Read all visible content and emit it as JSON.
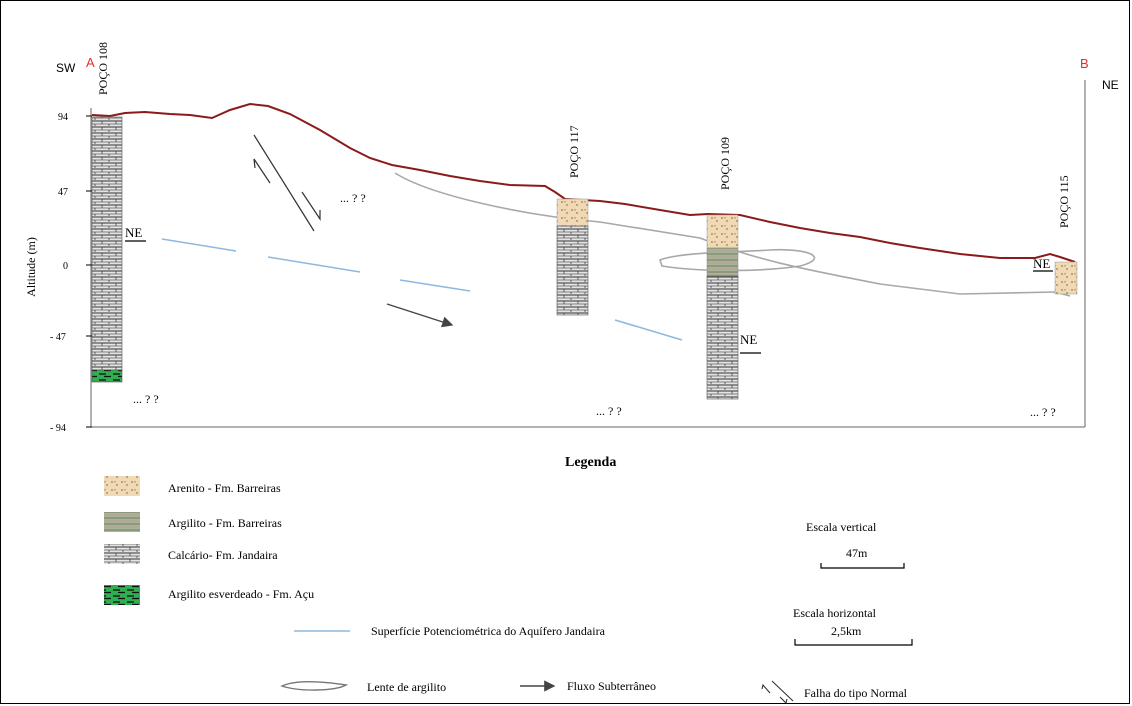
{
  "section": {
    "end_left": "A",
    "end_right": "B",
    "dir_left": "SW",
    "dir_right": "NE",
    "end_color": "#e03030"
  },
  "axis": {
    "label": "Altitude (m)",
    "ticks": [
      "94",
      "47",
      "0",
      "- 47",
      "- 94"
    ]
  },
  "wells": [
    {
      "name": "POÇO 108"
    },
    {
      "name": "POÇO 117"
    },
    {
      "name": "POÇO 109"
    },
    {
      "name": "POÇO 115"
    }
  ],
  "water_level_label": "NE",
  "unknown_marker": "... ? ?",
  "legend": {
    "title": "Legenda",
    "lithology": [
      {
        "label": "Arenito - Fm. Barreiras",
        "pattern": "arenito-pattern"
      },
      {
        "label": "Argilito - Fm. Barreiras",
        "pattern": "argilito-pattern"
      },
      {
        "label": "Calcário- Fm. Jandaira",
        "pattern": "calcario-pattern"
      },
      {
        "label": "Argilito esverdeado - Fm. Açu",
        "pattern": "acu-pattern"
      }
    ],
    "potentiometric": "Superfície Potenciométrica do Aquífero Jandaira",
    "lens": "Lente de argilito",
    "flow": "Fluxo Subterrâneo",
    "fault": "Falha do tipo Normal",
    "scale_vertical": {
      "title": "Escala vertical",
      "value": "47m"
    },
    "scale_horizontal": {
      "title": "Escala horizontal",
      "value": "2,5km"
    }
  },
  "colors": {
    "topography": "#8b1a1a",
    "potentiometric": "#8fb8e0",
    "lens": "#a8a8a8",
    "arenito": "#f0d9b5",
    "argilito": "#9aa88a",
    "calcario": "#d9d9d9",
    "acu": "#2fb050"
  }
}
